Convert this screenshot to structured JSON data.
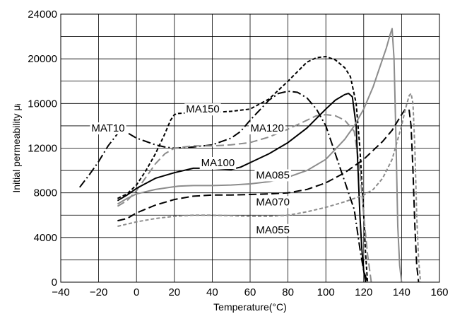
{
  "chart_data": {
    "type": "line",
    "title": "",
    "xlabel": "Temperature(°C)",
    "ylabel": "Initial permeability μᵢ",
    "xlim": [
      -40,
      160
    ],
    "ylim": [
      0,
      24000
    ],
    "x_ticks": [
      -40,
      -20,
      0,
      20,
      40,
      60,
      80,
      100,
      120,
      140,
      160
    ],
    "x_tick_labels": [
      "−40",
      "−20",
      "0",
      "20",
      "40",
      "60",
      "80",
      "100",
      "120",
      "140",
      "160"
    ],
    "y_ticks": [
      0,
      4000,
      8000,
      12000,
      16000,
      20000,
      24000
    ],
    "y_tick_labels": [
      "0",
      "4000",
      "8000",
      "12000",
      "16000",
      "20000",
      "24000"
    ],
    "grid": true,
    "legend": "inline labels",
    "series": [
      {
        "name": "MAT10",
        "color": "#000000",
        "dash": "dash-dot",
        "x": [
          -30,
          -25,
          -20,
          -15,
          -10,
          -8,
          -5,
          0,
          5,
          10,
          15,
          20,
          30,
          40,
          50,
          55,
          60,
          70,
          75,
          80,
          85,
          90,
          95,
          100,
          105,
          110,
          115,
          118,
          120,
          122
        ],
        "y": [
          8500,
          9600,
          10800,
          12200,
          13300,
          13500,
          13400,
          12900,
          12600,
          12300,
          12100,
          12000,
          12100,
          12300,
          12900,
          13500,
          14500,
          16300,
          16900,
          17100,
          17000,
          16500,
          15500,
          14000,
          11500,
          9000,
          6500,
          3000,
          1000,
          0
        ]
      },
      {
        "name": "MA150",
        "color": "#000000",
        "dash": "short-dash",
        "x": [
          -10,
          -5,
          0,
          5,
          10,
          15,
          18,
          20,
          22,
          30,
          40,
          50,
          60,
          70,
          80,
          90,
          95,
          100,
          105,
          110,
          113,
          116,
          118,
          120,
          121,
          122
        ],
        "y": [
          7500,
          7900,
          8700,
          10000,
          11500,
          13300,
          14500,
          15000,
          15100,
          15200,
          15200,
          15300,
          15500,
          16400,
          18000,
          19700,
          20100,
          20200,
          19900,
          19200,
          18400,
          16000,
          12000,
          6000,
          2500,
          0
        ]
      },
      {
        "name": "MA120",
        "color": "#8c8c8c",
        "dash": "long-dash",
        "x": [
          -10,
          -5,
          0,
          5,
          10,
          15,
          20,
          25,
          30,
          40,
          50,
          60,
          70,
          80,
          90,
          95,
          100,
          105,
          110,
          115,
          118,
          120,
          122,
          124
        ],
        "y": [
          6800,
          7300,
          8200,
          9400,
          10600,
          11500,
          12000,
          12100,
          12200,
          12200,
          12300,
          12500,
          13000,
          13700,
          14500,
          14900,
          15000,
          14900,
          14500,
          13500,
          10000,
          6000,
          2500,
          0
        ]
      },
      {
        "name": "MA100",
        "color": "#000000",
        "dash": "solid",
        "x": [
          -10,
          -5,
          0,
          10,
          20,
          30,
          40,
          50,
          55,
          60,
          70,
          80,
          90,
          100,
          105,
          110,
          112,
          114,
          116,
          117,
          118,
          119,
          120,
          121
        ],
        "y": [
          7300,
          7800,
          8400,
          9300,
          9800,
          10200,
          10200,
          10100,
          10300,
          10700,
          11500,
          12500,
          13800,
          15500,
          16300,
          16800,
          16900,
          16600,
          14000,
          10000,
          6000,
          3000,
          1000,
          0
        ]
      },
      {
        "name": "MA085",
        "color": "#8c8c8c",
        "dash": "solid",
        "x": [
          -10,
          -5,
          0,
          10,
          18,
          22,
          30,
          40,
          50,
          60,
          70,
          80,
          90,
          100,
          110,
          115,
          120,
          125,
          128,
          130,
          132,
          134,
          135,
          136,
          137,
          138,
          139,
          140
        ],
        "y": [
          7000,
          7500,
          7900,
          8300,
          8500,
          8600,
          8650,
          8650,
          8700,
          8800,
          9000,
          9400,
          10000,
          11000,
          12800,
          14000,
          15500,
          17500,
          19000,
          20000,
          21000,
          22200,
          22700,
          20000,
          13000,
          5000,
          1500,
          0
        ]
      },
      {
        "name": "MA070",
        "color": "#000000",
        "dash": "long-dash",
        "x": [
          -10,
          -5,
          0,
          10,
          20,
          30,
          40,
          50,
          60,
          70,
          80,
          90,
          100,
          110,
          120,
          130,
          135,
          140,
          142,
          144,
          145,
          146,
          147,
          148,
          149
        ],
        "y": [
          5500,
          5700,
          6200,
          6900,
          7400,
          7700,
          7800,
          7800,
          7850,
          7900,
          8000,
          8300,
          8900,
          9800,
          11000,
          12600,
          13600,
          15000,
          15500,
          15400,
          14000,
          10000,
          5000,
          1500,
          0
        ]
      },
      {
        "name": "MA055",
        "color": "#8c8c8c",
        "dash": "short-dash",
        "x": [
          -10,
          -5,
          0,
          10,
          20,
          30,
          40,
          50,
          60,
          70,
          80,
          90,
          100,
          110,
          120,
          125,
          130,
          135,
          140,
          142,
          144,
          145,
          146,
          147,
          148,
          149,
          150
        ],
        "y": [
          5000,
          5200,
          5400,
          5700,
          5900,
          6000,
          6000,
          5950,
          5900,
          5900,
          6000,
          6300,
          6700,
          7200,
          7800,
          8300,
          9300,
          11000,
          14000,
          15500,
          16700,
          16900,
          16000,
          12000,
          6000,
          2000,
          0
        ]
      }
    ],
    "labels": [
      {
        "text": "MAT10",
        "x": -15,
        "y": 13800
      },
      {
        "text": "MA150",
        "x": 35,
        "y": 15500
      },
      {
        "text": "MA120",
        "x": 69,
        "y": 13800
      },
      {
        "text": "MA100",
        "x": 43,
        "y": 10700
      },
      {
        "text": "MA085",
        "x": 72,
        "y": 9600
      },
      {
        "text": "MA070",
        "x": 72,
        "y": 7200
      },
      {
        "text": "MA055",
        "x": 72,
        "y": 4700
      }
    ]
  }
}
